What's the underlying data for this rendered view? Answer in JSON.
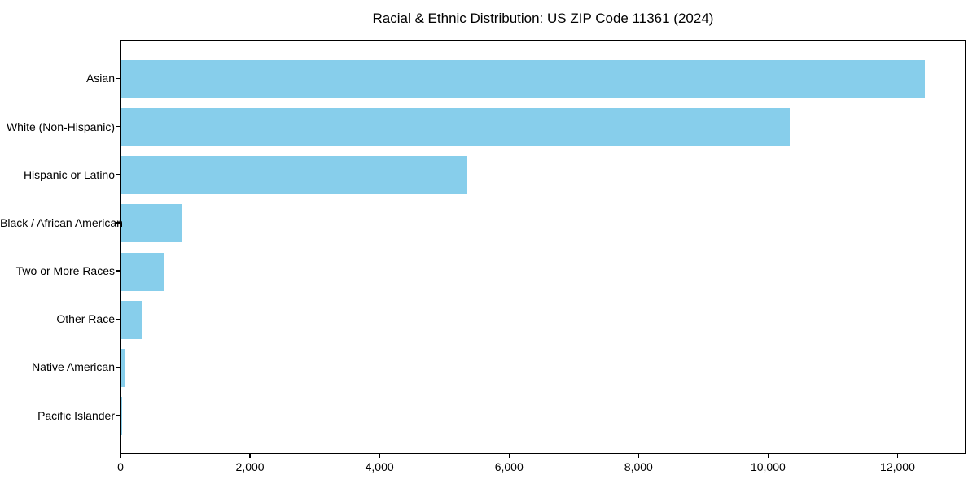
{
  "chart_data": {
    "type": "bar",
    "orientation": "horizontal",
    "title": "Racial & Ethnic Distribution: US ZIP Code 11361 (2024)",
    "categories": [
      "Asian",
      "White (Non-Hispanic)",
      "Hispanic or Latino",
      "Black / African American",
      "Two or More Races",
      "Other Race",
      "Native American",
      "Pacific Islander"
    ],
    "values": [
      12430,
      10340,
      5340,
      930,
      670,
      330,
      60,
      5
    ],
    "xlabel": "",
    "ylabel": "",
    "xlim": [
      0,
      13050
    ],
    "xticks": [
      0,
      2000,
      4000,
      6000,
      8000,
      10000,
      12000
    ],
    "xtick_labels": [
      "0",
      "2,000",
      "4,000",
      "6,000",
      "8,000",
      "10,000",
      "12,000"
    ],
    "grid": false,
    "legend": null,
    "colors": {
      "bar": "#87CEEB",
      "spine": "#000000",
      "text": "#000000",
      "background": "#ffffff"
    }
  }
}
